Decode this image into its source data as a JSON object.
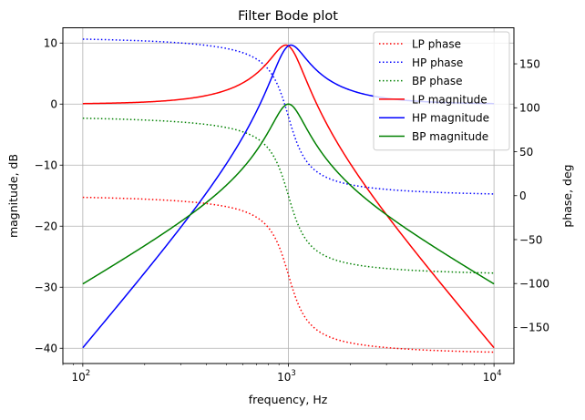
{
  "chart_data": {
    "type": "line",
    "title": "Filter Bode plot",
    "xlabel": "frequency, Hz",
    "ylabel_left": "magnitude, dB",
    "ylabel_right": "phase, deg",
    "x_scale": "log",
    "xlim": [
      80,
      12500
    ],
    "ylim_left": [
      -42.5,
      12.5
    ],
    "ylim_right": [
      -191,
      191
    ],
    "x_ticks": [
      {
        "value": 100,
        "base": "10",
        "exp": "2"
      },
      {
        "value": 1000,
        "base": "10",
        "exp": "3"
      },
      {
        "value": 10000,
        "base": "10",
        "exp": "4"
      }
    ],
    "y_ticks_left": [
      {
        "value": 10,
        "label": "10"
      },
      {
        "value": 0,
        "label": "0"
      },
      {
        "value": -10,
        "label": "−10"
      },
      {
        "value": -20,
        "label": "−20"
      },
      {
        "value": -30,
        "label": "−30"
      },
      {
        "value": -40,
        "label": "−40"
      }
    ],
    "y_ticks_right": [
      {
        "value": 150,
        "label": "150"
      },
      {
        "value": 100,
        "label": "100"
      },
      {
        "value": 50,
        "label": "50"
      },
      {
        "value": 0,
        "label": "0"
      },
      {
        "value": -50,
        "label": "−50"
      },
      {
        "value": -100,
        "label": "−100"
      },
      {
        "value": -150,
        "label": "−150"
      }
    ],
    "grid": true,
    "legend_position": "top-right",
    "model": {
      "f0": 1000,
      "Q": 3,
      "f_min": 100,
      "f_max": 10000
    },
    "series": [
      {
        "name": "LP phase",
        "filter": "lp",
        "quantity": "phase",
        "axis": "right",
        "style": "dotted",
        "color": "#ff0000"
      },
      {
        "name": "HP phase",
        "filter": "hp",
        "quantity": "phase",
        "axis": "right",
        "style": "dotted",
        "color": "#0000ff"
      },
      {
        "name": "BP phase",
        "filter": "bp",
        "quantity": "phase",
        "axis": "right",
        "style": "dotted",
        "color": "#008000"
      },
      {
        "name": "LP magnitude",
        "filter": "lp",
        "quantity": "magnitude",
        "axis": "left",
        "style": "solid",
        "color": "#ff0000"
      },
      {
        "name": "HP magnitude",
        "filter": "hp",
        "quantity": "magnitude",
        "axis": "left",
        "style": "solid",
        "color": "#0000ff"
      },
      {
        "name": "BP magnitude",
        "filter": "bp",
        "quantity": "magnitude",
        "axis": "left",
        "style": "solid",
        "color": "#008000"
      }
    ]
  }
}
